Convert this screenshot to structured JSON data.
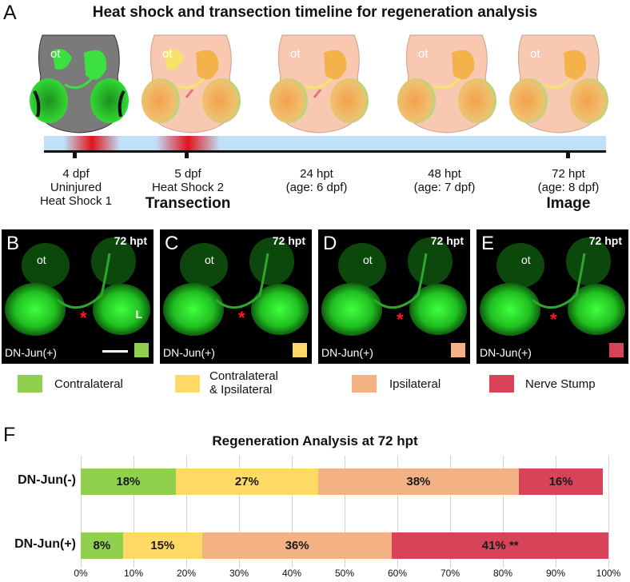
{
  "figure": {
    "panel_labels": [
      "A",
      "B",
      "C",
      "D",
      "E",
      "F"
    ],
    "panel_a": {
      "title": "Heat shock and transection timeline for regeneration analysis",
      "ot_label": "ot",
      "timepoints": [
        {
          "line1": "4 dpf",
          "line2": "Uninjured",
          "line3": "Heat Shock 1",
          "bold": ""
        },
        {
          "line1": "5 dpf",
          "line2": "Heat Shock 2",
          "line3": "",
          "bold": "Transection"
        },
        {
          "line1": "24 hpt",
          "line2": "(age: 6 dpf)",
          "line3": "",
          "bold": ""
        },
        {
          "line1": "48 hpt",
          "line2": "(age: 7 dpf)",
          "line3": "",
          "bold": ""
        },
        {
          "line1": "72 hpt",
          "line2": "(age: 8 dpf)",
          "line3": "",
          "bold": "Image"
        }
      ]
    },
    "micrographs": [
      {
        "letter": "B",
        "time": "72 hpt",
        "ot": "ot",
        "genotype": "DN-Jun(+)",
        "extra": "L",
        "swatch": "#8fd14f"
      },
      {
        "letter": "C",
        "time": "72 hpt",
        "ot": "ot",
        "genotype": "DN-Jun(+)",
        "extra": "",
        "swatch": "#ffd966"
      },
      {
        "letter": "D",
        "time": "72 hpt",
        "ot": "ot",
        "genotype": "DN-Jun(+)",
        "extra": "",
        "swatch": "#f4b183"
      },
      {
        "letter": "E",
        "time": "72 hpt",
        "ot": "ot",
        "genotype": "DN-Jun(+)",
        "extra": "",
        "swatch": "#d9435a"
      }
    ],
    "legend": [
      {
        "label": "Contralateral",
        "color": "#8fd14f"
      },
      {
        "label": "Contralateral\n& Ipsilateral",
        "color": "#ffd966"
      },
      {
        "label": "Ipsilateral",
        "color": "#f4b183"
      },
      {
        "label": "Nerve Stump",
        "color": "#d9435a"
      }
    ]
  },
  "chart_data": {
    "type": "bar",
    "orientation": "horizontal-stacked",
    "title": "Regeneration Analysis at 72 hpt",
    "categories": [
      "DN-Jun(-)",
      "DN-Jun(+)"
    ],
    "series": [
      {
        "name": "Contralateral",
        "color": "#8fd14f",
        "values": [
          18,
          8
        ],
        "labels": [
          "18%",
          "8%"
        ]
      },
      {
        "name": "Contralateral & Ipsilateral",
        "color": "#ffd966",
        "values": [
          27,
          15
        ],
        "labels": [
          "27%",
          "15%"
        ]
      },
      {
        "name": "Ipsilateral",
        "color": "#f4b183",
        "values": [
          38,
          36
        ],
        "labels": [
          "38%",
          "36%"
        ]
      },
      {
        "name": "Nerve Stump",
        "color": "#d9435a",
        "values": [
          16,
          41
        ],
        "labels": [
          "16%",
          "41% **"
        ]
      }
    ],
    "xlim": [
      0,
      100
    ],
    "xticks": [
      "0%",
      "10%",
      "20%",
      "30%",
      "40%",
      "50%",
      "60%",
      "70%",
      "80%",
      "90%",
      "100%"
    ],
    "grid": true
  }
}
